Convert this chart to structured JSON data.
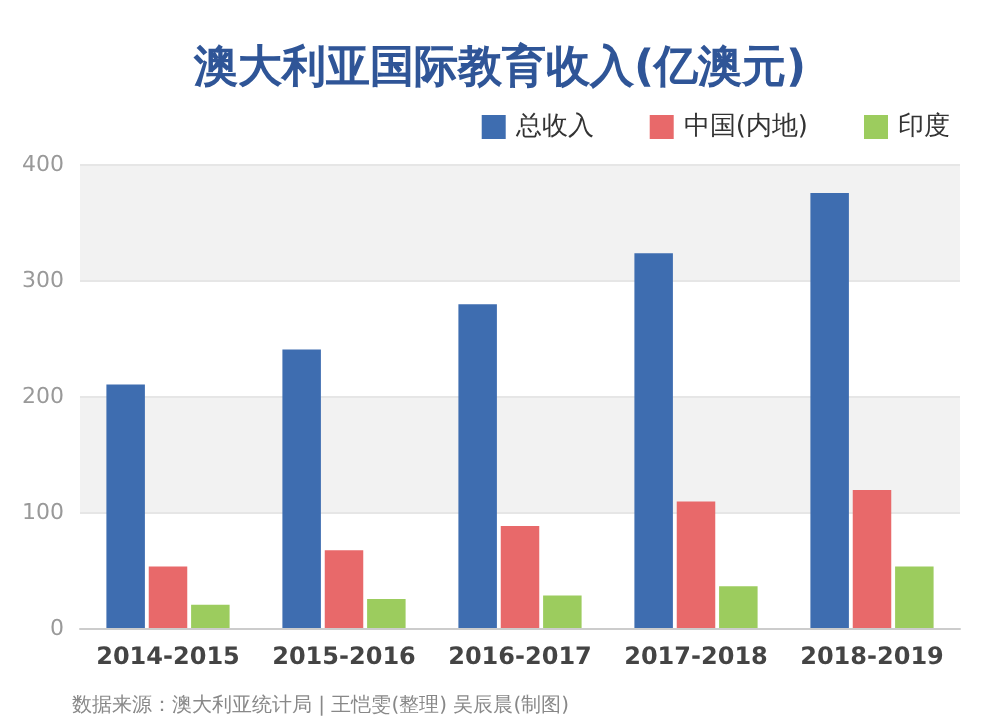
{
  "chart_data": {
    "type": "bar",
    "title": "澳大利亚国际教育收入(亿澳元)",
    "categories": [
      "2014-2015",
      "2015-2016",
      "2016-2017",
      "2017-2018",
      "2018-2019"
    ],
    "series": [
      {
        "name": "总收入",
        "color": "#3e6db0",
        "values": [
          210,
          240,
          279,
          323,
          375
        ]
      },
      {
        "name": "中国(内地)",
        "color": "#e8696a",
        "values": [
          53,
          67,
          88,
          109,
          119
        ]
      },
      {
        "name": "印度",
        "color": "#9ccc5e",
        "values": [
          20,
          25,
          28,
          36,
          53
        ]
      }
    ],
    "ylim": [
      0,
      400
    ],
    "yticks": [
      0,
      100,
      200,
      300,
      400
    ],
    "grid": "y",
    "legend": "top right",
    "annotations": [
      "数据来源：澳大利亚统计局 | 王恺雯(整理) 吴辰晨(制图)"
    ]
  }
}
